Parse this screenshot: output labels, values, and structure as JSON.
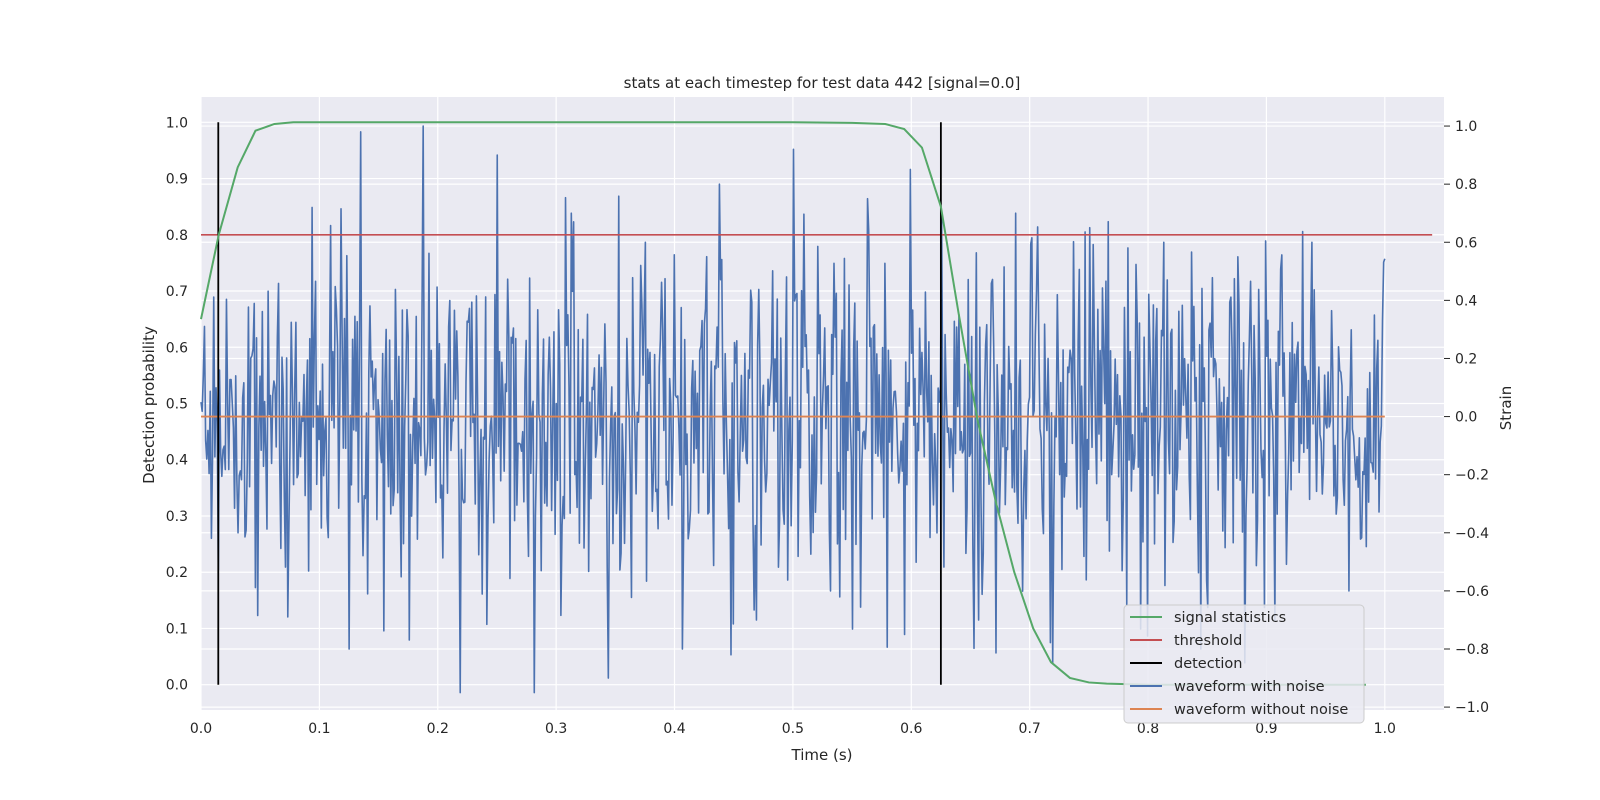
{
  "chart_data": {
    "type": "line",
    "title": "stats at each timestep for test data 442 [signal=0.0]",
    "xlabel": "Time (s)",
    "ylabel": "Detection probability",
    "ylabel_right": "Strain",
    "xlim": [
      0.0,
      1.05
    ],
    "ylim": [
      -0.045,
      1.045
    ],
    "ylim_right": [
      -1.01,
      1.1
    ],
    "xticks": [
      "0.0",
      "0.1",
      "0.2",
      "0.3",
      "0.4",
      "0.5",
      "0.6",
      "0.7",
      "0.8",
      "0.9",
      "1.0"
    ],
    "yticks": [
      "0.0",
      "0.1",
      "0.2",
      "0.3",
      "0.4",
      "0.5",
      "0.6",
      "0.7",
      "0.8",
      "0.9",
      "1.0"
    ],
    "yticks_right": [
      "−1.0",
      "−0.8",
      "−0.6",
      "−0.4",
      "−0.2",
      "0.0",
      "0.2",
      "0.4",
      "0.6",
      "0.8",
      "1.0"
    ],
    "grid": true,
    "legend_position": "lower-right",
    "legend": [
      "signal statistics",
      "threshold",
      "detection",
      "waveform with noise",
      "waveform without noise"
    ],
    "series": [
      {
        "name": "signal statistics",
        "color": "#55a868",
        "axis": "left",
        "x": [
          0.0,
          0.015,
          0.031,
          0.046,
          0.062,
          0.078,
          0.093,
          0.125,
          0.2,
          0.3,
          0.4,
          0.5,
          0.55,
          0.578,
          0.594,
          0.609,
          0.625,
          0.64,
          0.656,
          0.672,
          0.687,
          0.703,
          0.718,
          0.734,
          0.75,
          0.765,
          0.781,
          0.8,
          0.85,
          0.9,
          0.95,
          0.984
        ],
        "y": [
          0.65,
          0.8,
          0.92,
          0.985,
          0.997,
          1.0,
          1.0,
          1.0,
          1.0,
          1.0,
          1.0,
          1.0,
          0.999,
          0.997,
          0.988,
          0.955,
          0.85,
          0.66,
          0.47,
          0.32,
          0.2,
          0.1,
          0.04,
          0.012,
          0.004,
          0.002,
          0.001,
          0.0,
          0.0,
          0.0,
          0.0,
          0.0
        ]
      },
      {
        "name": "threshold",
        "color": "#c44e52",
        "axis": "left",
        "x": [
          0.0,
          1.04
        ],
        "y": [
          0.8,
          0.8
        ]
      },
      {
        "name": "detection",
        "color": "#000000",
        "axis": "left",
        "x_positions": [
          0.0146,
          0.625
        ],
        "y_range": [
          0.0,
          1.0
        ]
      },
      {
        "name": "waveform with noise",
        "color": "#4c72b0",
        "axis": "right",
        "x_range": [
          0.0,
          1.0
        ],
        "point_count": 1024,
        "y_sample": [
          0.05,
          -0.4,
          0.1,
          0.72,
          -0.8,
          0.3,
          1.0,
          -0.95,
          0.9,
          -0.95,
          0.7,
          -0.9,
          0.6,
          -0.8,
          0.8,
          -0.7,
          0.92,
          -0.6,
          0.75,
          -0.75,
          0.7,
          -0.7,
          0.7,
          -0.85,
          0.65,
          -0.65,
          0.6,
          -0.8,
          0.55,
          -0.7,
          0.6,
          -0.6
        ]
      },
      {
        "name": "waveform without noise",
        "color": "#dd8452",
        "axis": "right",
        "x": [
          0.0,
          1.0
        ],
        "y": [
          0.0,
          0.0
        ]
      }
    ]
  }
}
